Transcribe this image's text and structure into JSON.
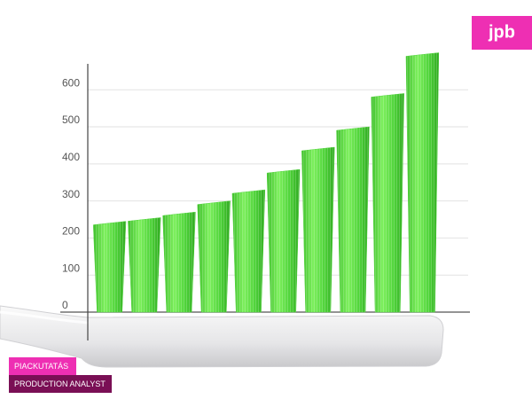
{
  "chart_data": {
    "type": "bar",
    "logo": "jpb",
    "tags": [
      "PIACKUTATÁS",
      "PRODUCTION ANALYST"
    ],
    "categories": [
      null,
      null,
      null,
      null,
      null,
      null,
      null,
      null,
      null,
      null
    ],
    "values": [
      245,
      255,
      270,
      300,
      330,
      385,
      445,
      500,
      590,
      700
    ],
    "color": "#4fd33a",
    "ylim": [
      0,
      670
    ],
    "yticks": [
      0,
      100,
      200,
      300,
      400,
      500,
      600
    ],
    "grid": true
  }
}
